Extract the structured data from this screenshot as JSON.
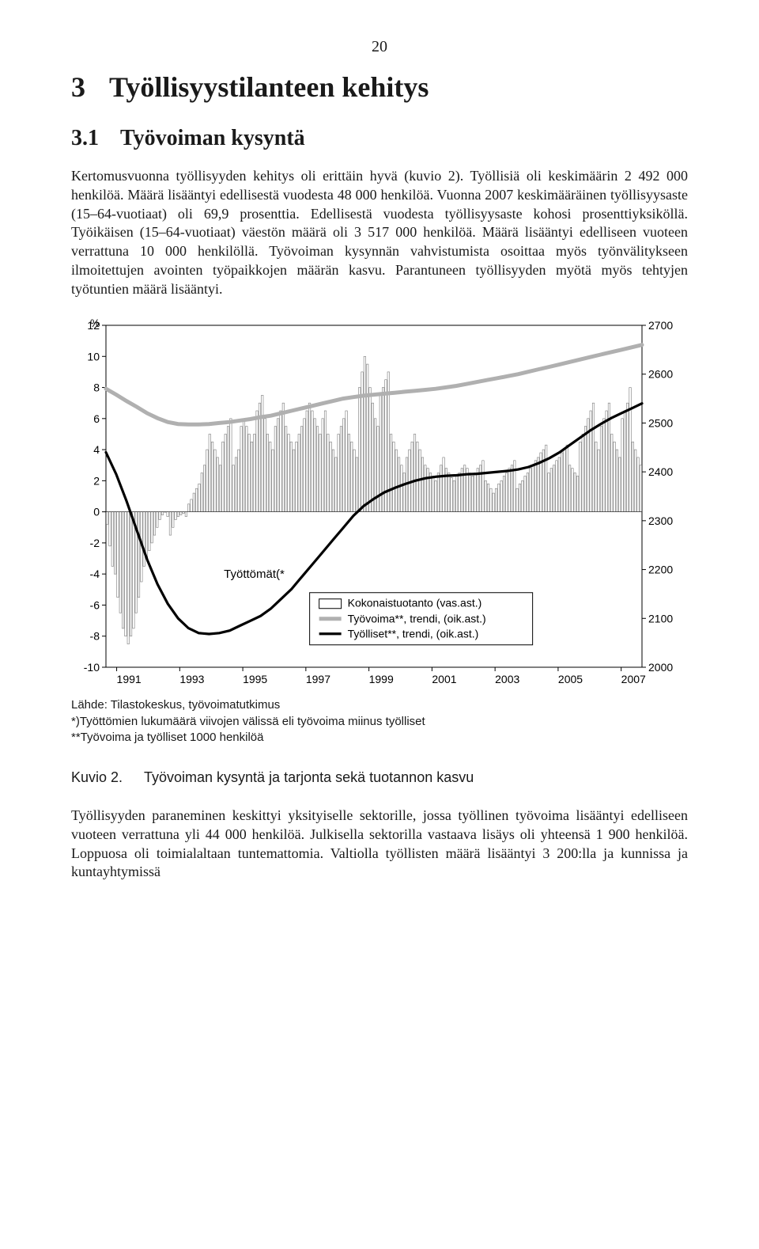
{
  "page_number": "20",
  "chapter": {
    "num": "3",
    "title": "Työllisyystilanteen kehitys"
  },
  "section": {
    "num": "3.1",
    "title": "Työvoiman kysyntä"
  },
  "para1": "Kertomusvuonna työllisyyden kehitys oli erittäin hyvä (kuvio 2). Työllisiä oli keskimäärin 2 492 000 henkilöä. Määrä lisääntyi edellisestä vuodesta 48 000 henkilöä. Vuonna 2007 keskimääräinen työllisyysaste (15–64-vuotiaat) oli 69,9 prosenttia. Edellisestä vuodesta työllisyysaste kohosi prosenttiyksiköllä. Työikäisen (15–64-vuotiaat) väestön määrä oli 3 517 000 henkilöä. Määrä lisääntyi edelliseen vuoteen verrattuna 10 000 henkilöllä. Työvoiman kysynnän vahvistumista osoittaa myös työnvälitykseen ilmoitettujen avointen työpaikkojen määrän kasvu. Parantuneen työllisyyden myötä myös tehtyjen työtuntien määrä lisääntyi.",
  "para2": "Työllisyyden paraneminen keskittyi yksityiselle sektorille, jossa työllinen työvoima lisääntyi edelliseen vuoteen verrattuna yli 44 000 henkilöä. Julkisella sektorilla vastaava lisäys oli yhteensä 1 900 henkilöä. Loppuosa oli toimialaltaan tuntemattomia. Valtiolla työllisten määrä lisääntyi 3 200:lla ja kunnissa ja kuntayhtymissä",
  "chart": {
    "type": "combo-bar-line",
    "annotation_label": "Työttömät(*",
    "left_axis": {
      "label": "%",
      "min": -10,
      "max": 12,
      "ticks": [
        -10,
        -8,
        -6,
        -4,
        -2,
        0,
        2,
        4,
        6,
        8,
        10,
        12
      ],
      "tick_fontsize": 14
    },
    "right_axis": {
      "min": 2000,
      "max": 2700,
      "ticks": [
        2000,
        2100,
        2200,
        2300,
        2400,
        2500,
        2600,
        2700
      ],
      "tick_fontsize": 14
    },
    "x_axis": {
      "labels": [
        "1991",
        "1993",
        "1995",
        "1997",
        "1999",
        "2001",
        "2003",
        "2005",
        "2007"
      ],
      "tick_fontsize": 14
    },
    "colors": {
      "frame": "#000000",
      "bar_fill": "#ffffff",
      "bar_stroke": "#7a7a7a",
      "grey_line": "#b0b0b0",
      "black_line": "#000000",
      "legend_box_stroke": "#000000",
      "legend_box_fill": "#ffffff",
      "background": "#ffffff"
    },
    "legend": {
      "items": [
        {
          "label": "Kokonaistuotanto (vas.ast.)",
          "swatch": "box"
        },
        {
          "label": "Työvoima**, trendi, (oik.ast.)",
          "swatch": "grey-line"
        },
        {
          "label": "Työlliset**, trendi, (oik.ast.)",
          "swatch": "black-line"
        }
      ]
    },
    "bars": [
      -0.8,
      -2.2,
      -3.5,
      -4.0,
      -5.5,
      -6.5,
      -7.5,
      -8.0,
      -8.5,
      -8.0,
      -7.5,
      -6.5,
      -5.5,
      -4.5,
      -3.5,
      -3.0,
      -2.5,
      -2.0,
      -1.5,
      -1.0,
      -0.5,
      -0.2,
      0.0,
      -0.3,
      -1.5,
      -1.0,
      -0.5,
      -0.3,
      -0.2,
      -0.1,
      -0.3,
      0.5,
      0.8,
      1.2,
      1.5,
      1.8,
      2.5,
      3.0,
      4.0,
      5.0,
      4.5,
      4.0,
      3.5,
      3.0,
      4.5,
      5.0,
      5.5,
      6.0,
      3.0,
      3.5,
      4.0,
      5.5,
      6.0,
      5.5,
      5.0,
      4.5,
      5.0,
      6.5,
      7.0,
      7.5,
      6.0,
      5.0,
      4.5,
      4.0,
      5.5,
      6.0,
      6.5,
      7.0,
      5.5,
      5.0,
      4.5,
      4.0,
      4.5,
      5.0,
      5.5,
      6.0,
      6.5,
      7.0,
      6.5,
      6.0,
      5.5,
      5.0,
      6.0,
      6.5,
      5.0,
      4.5,
      4.0,
      3.5,
      5.0,
      5.5,
      6.0,
      6.5,
      5.0,
      4.5,
      4.0,
      3.5,
      8.0,
      9.0,
      10.0,
      9.5,
      8.0,
      7.0,
      6.0,
      5.5,
      7.5,
      8.0,
      8.5,
      9.0,
      5.0,
      4.5,
      4.0,
      3.5,
      3.0,
      2.5,
      3.5,
      4.0,
      4.5,
      5.0,
      4.5,
      4.0,
      3.5,
      3.0,
      2.8,
      2.5,
      2.3,
      2.0,
      2.5,
      3.0,
      3.5,
      2.8,
      2.5,
      2.2,
      2.0,
      2.3,
      2.5,
      2.8,
      3.0,
      2.8,
      2.5,
      2.3,
      2.5,
      2.8,
      3.0,
      3.3,
      2.0,
      1.8,
      1.5,
      1.2,
      1.5,
      1.8,
      2.0,
      2.3,
      2.5,
      2.8,
      3.0,
      3.3,
      1.5,
      1.8,
      2.0,
      2.3,
      2.5,
      2.8,
      3.0,
      3.3,
      3.5,
      3.8,
      4.0,
      4.3,
      2.5,
      2.8,
      3.0,
      3.3,
      3.5,
      3.8,
      4.0,
      4.3,
      3.0,
      2.8,
      2.5,
      2.3,
      4.5,
      5.0,
      5.5,
      6.0,
      6.5,
      7.0,
      4.5,
      4.0,
      5.5,
      6.0,
      6.5,
      7.0,
      5.0,
      4.5,
      4.0,
      3.5,
      6.0,
      6.5,
      7.0,
      8.0,
      4.5,
      4.0,
      3.5,
      3.0
    ],
    "grey_line_pts": [
      2570,
      2558,
      2545,
      2533,
      2520,
      2510,
      2502,
      2498,
      2497,
      2497,
      2498,
      2500,
      2502,
      2505,
      2508,
      2512,
      2515,
      2520,
      2525,
      2530,
      2535,
      2540,
      2545,
      2550,
      2553,
      2556,
      2558,
      2560,
      2562,
      2564,
      2566,
      2568,
      2570,
      2573,
      2576,
      2580,
      2584,
      2588,
      2592,
      2596,
      2600,
      2605,
      2610,
      2615,
      2620,
      2625,
      2630,
      2635,
      2640,
      2645,
      2650,
      2655,
      2660
    ],
    "black_line_pts": [
      2440,
      2395,
      2340,
      2280,
      2220,
      2170,
      2130,
      2100,
      2080,
      2070,
      2068,
      2070,
      2075,
      2085,
      2095,
      2105,
      2120,
      2140,
      2160,
      2185,
      2210,
      2235,
      2260,
      2285,
      2310,
      2330,
      2345,
      2358,
      2367,
      2375,
      2382,
      2387,
      2390,
      2392,
      2393,
      2395,
      2396,
      2398,
      2400,
      2402,
      2405,
      2410,
      2418,
      2428,
      2440,
      2455,
      2470,
      2485,
      2498,
      2510,
      2520,
      2530,
      2540
    ]
  },
  "source_lines": [
    "Lähde: Tilastokeskus, työvoimatutkimus",
    "*)Työttömien lukumäärä viivojen välissä eli työvoima miinus työlliset",
    "**Työvoima ja työlliset 1000 henkilöä"
  ],
  "figure_caption": {
    "kuv": "Kuvio 2.",
    "text": "Työvoiman kysyntä ja tarjonta sekä tuotannon kasvu"
  }
}
